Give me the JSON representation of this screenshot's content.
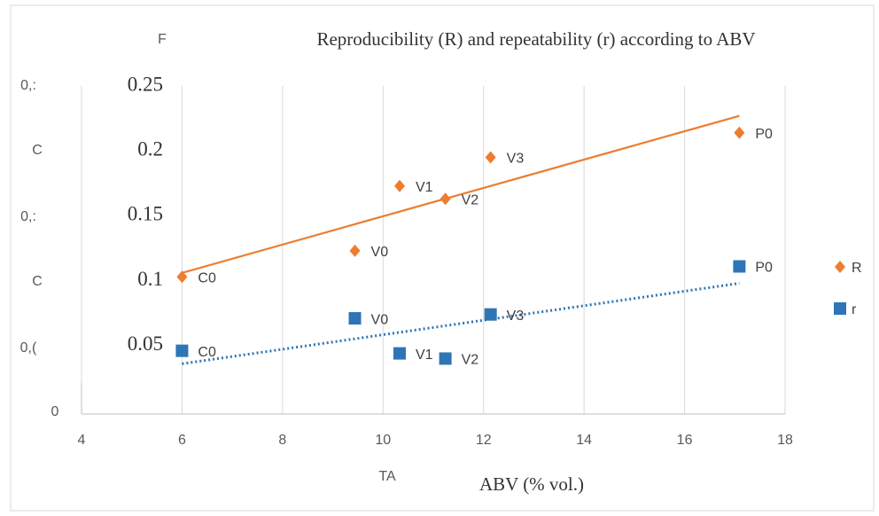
{
  "chart_data": {
    "type": "scatter",
    "title": "Reproducibility (R) and repeatability (r) according to ABV",
    "x_label": "ABV (% vol.)",
    "labels": [
      "C0",
      "V0",
      "V1",
      "V2",
      "V3",
      "P0"
    ],
    "x": [
      6.0,
      9.44,
      10.33,
      11.24,
      12.14,
      17.09
    ],
    "series": [
      {
        "name": "r",
        "color": "#2e75b6",
        "marker": "square",
        "values": [
          0.046,
          0.071,
          0.044,
          0.04,
          0.074,
          0.111
        ],
        "trendline": {
          "x": [
            6.0,
            17.09
          ],
          "values": [
            0.036,
            0.098
          ],
          "style": "dotted"
        }
      },
      {
        "name": "R",
        "color": "#ed7d31",
        "marker": "diamond",
        "values": [
          0.103,
          0.123,
          0.173,
          0.163,
          0.195,
          0.214
        ],
        "trendline": {
          "x": [
            6.0,
            17.09
          ],
          "values": [
            0.106,
            0.227
          ],
          "style": "solid"
        }
      }
    ],
    "xlim": [
      4,
      18
    ],
    "xticks": [
      4,
      6,
      8,
      10,
      12,
      14,
      16,
      18
    ],
    "ylim": [
      0,
      0.25
    ],
    "yticks": [
      0.05,
      0.1,
      0.15,
      0.2,
      0.25
    ],
    "grid": "x",
    "legend": "right"
  },
  "overlay_texts": [
    "F",
    "0,:",
    "C",
    "0,:",
    "C",
    "0,(",
    "0",
    "TA"
  ]
}
